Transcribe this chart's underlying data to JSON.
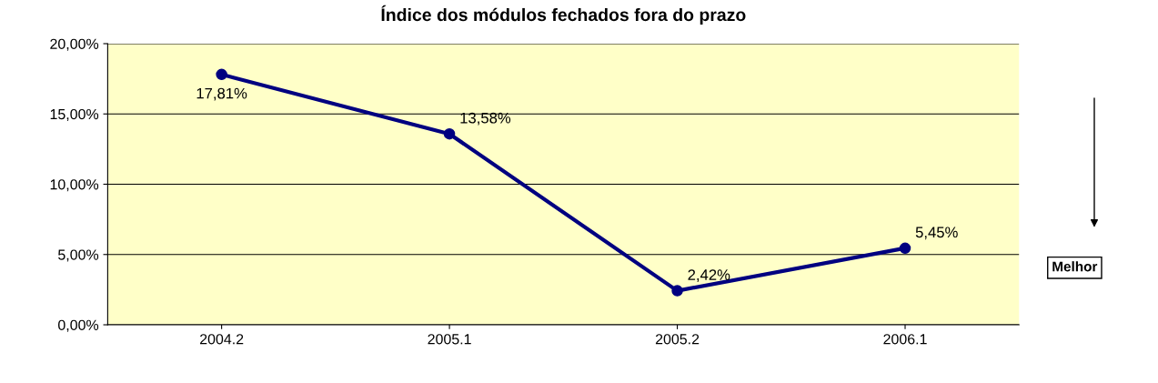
{
  "chart_data": {
    "type": "line",
    "title": "Índice dos módulos fechados fora do prazo",
    "categories": [
      "2004.2",
      "2005.1",
      "2005.2",
      "2006.1"
    ],
    "series": [
      {
        "color": "#000080",
        "values": [
          17.81,
          13.58,
          2.42,
          5.45
        ],
        "value_labels": [
          "17,81%",
          "13,58%",
          "2,42%",
          "5,45%"
        ]
      }
    ],
    "ylim": [
      0,
      20
    ],
    "yticks": [
      {
        "value": 0,
        "label": "0,00%"
      },
      {
        "value": 5,
        "label": "5,00%"
      },
      {
        "value": 10,
        "label": "10,00%"
      },
      {
        "value": 15,
        "label": "15,00%"
      },
      {
        "value": 20,
        "label": "20,00%"
      }
    ],
    "grid": "y",
    "marker": "circle",
    "line_style": "solid",
    "legend": false,
    "annotations": [
      "Melhor"
    ]
  }
}
